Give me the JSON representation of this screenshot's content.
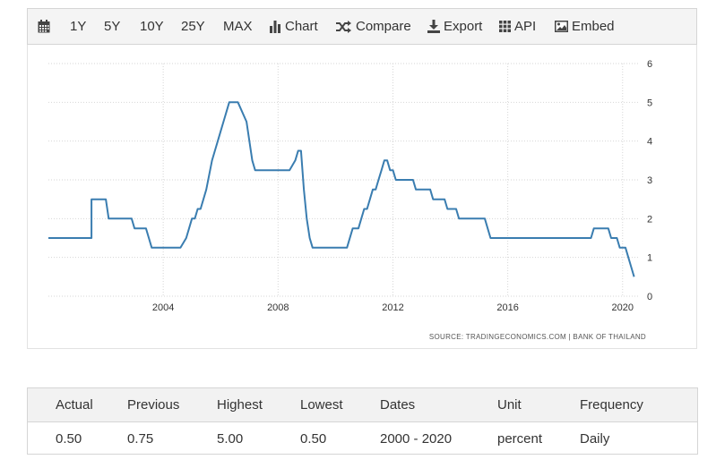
{
  "toolbar": {
    "calendar_icon": "calendar-icon",
    "ranges": [
      "1Y",
      "5Y",
      "10Y",
      "25Y",
      "MAX"
    ],
    "chart_label": "Chart",
    "compare_label": "Compare",
    "export_label": "Export",
    "api_label": "API",
    "embed_label": "Embed"
  },
  "chart_data": {
    "type": "line",
    "title": "",
    "xlabel": "",
    "ylabel": "",
    "xlim": [
      2000.0,
      2020.6
    ],
    "ylim": [
      0,
      6
    ],
    "x_ticks": [
      "2004",
      "2008",
      "2012",
      "2016",
      "2020"
    ],
    "y_ticks": [
      "0",
      "1",
      "2",
      "3",
      "4",
      "5",
      "6"
    ],
    "grid": true,
    "line_color": "#3a7db0",
    "source": "SOURCE: TRADINGECONOMICS.COM | BANK OF THAILAND",
    "series": [
      {
        "x": [
          2000.0,
          2001.5,
          2001.5,
          2002.0,
          2002.1,
          2002.9,
          2003.0,
          2003.4,
          2003.5,
          2003.6,
          2004.6,
          2004.8,
          2004.9,
          2005.0,
          2005.1,
          2005.2,
          2005.3,
          2005.4,
          2005.5,
          2005.7,
          2005.8,
          2005.9,
          2006.0,
          2006.1,
          2006.2,
          2006.3,
          2006.5,
          2006.6,
          2006.9,
          2007.1,
          2007.2,
          2007.4,
          2007.5,
          2008.4,
          2008.6,
          2008.7,
          2008.8,
          2008.9,
          2009.0,
          2009.1,
          2009.2,
          2009.3,
          2010.4,
          2010.6,
          2010.8,
          2010.9,
          2011.0,
          2011.1,
          2011.2,
          2011.3,
          2011.4,
          2011.5,
          2011.6,
          2011.7,
          2011.8,
          2011.9,
          2012.0,
          2012.1,
          2012.7,
          2012.8,
          2013.3,
          2013.4,
          2013.8,
          2013.9,
          2014.2,
          2014.3,
          2015.2,
          2015.3,
          2015.4,
          2018.9,
          2019.0,
          2019.5,
          2019.6,
          2019.8,
          2019.9,
          2020.1,
          2020.2,
          2020.3,
          2020.4
        ],
        "y": [
          1.5,
          1.5,
          2.5,
          2.5,
          2.0,
          2.0,
          1.75,
          1.75,
          1.5,
          1.25,
          1.25,
          1.5,
          1.75,
          2.0,
          2.0,
          2.25,
          2.25,
          2.5,
          2.75,
          3.5,
          3.75,
          4.0,
          4.25,
          4.5,
          4.75,
          5.0,
          5.0,
          5.0,
          4.5,
          3.5,
          3.25,
          3.25,
          3.25,
          3.25,
          3.5,
          3.75,
          3.75,
          2.75,
          2.0,
          1.5,
          1.25,
          1.25,
          1.25,
          1.75,
          1.75,
          2.0,
          2.25,
          2.25,
          2.5,
          2.75,
          2.75,
          3.0,
          3.25,
          3.5,
          3.5,
          3.25,
          3.25,
          3.0,
          3.0,
          2.75,
          2.75,
          2.5,
          2.5,
          2.25,
          2.25,
          2.0,
          2.0,
          1.75,
          1.5,
          1.5,
          1.75,
          1.75,
          1.5,
          1.5,
          1.25,
          1.25,
          1.0,
          0.75,
          0.5
        ]
      }
    ]
  },
  "stats": {
    "headers": [
      "Actual",
      "Previous",
      "Highest",
      "Lowest",
      "Dates",
      "Unit",
      "Frequency"
    ],
    "values": [
      "0.50",
      "0.75",
      "5.00",
      "0.50",
      "2000 - 2020",
      "percent",
      "Daily"
    ]
  }
}
